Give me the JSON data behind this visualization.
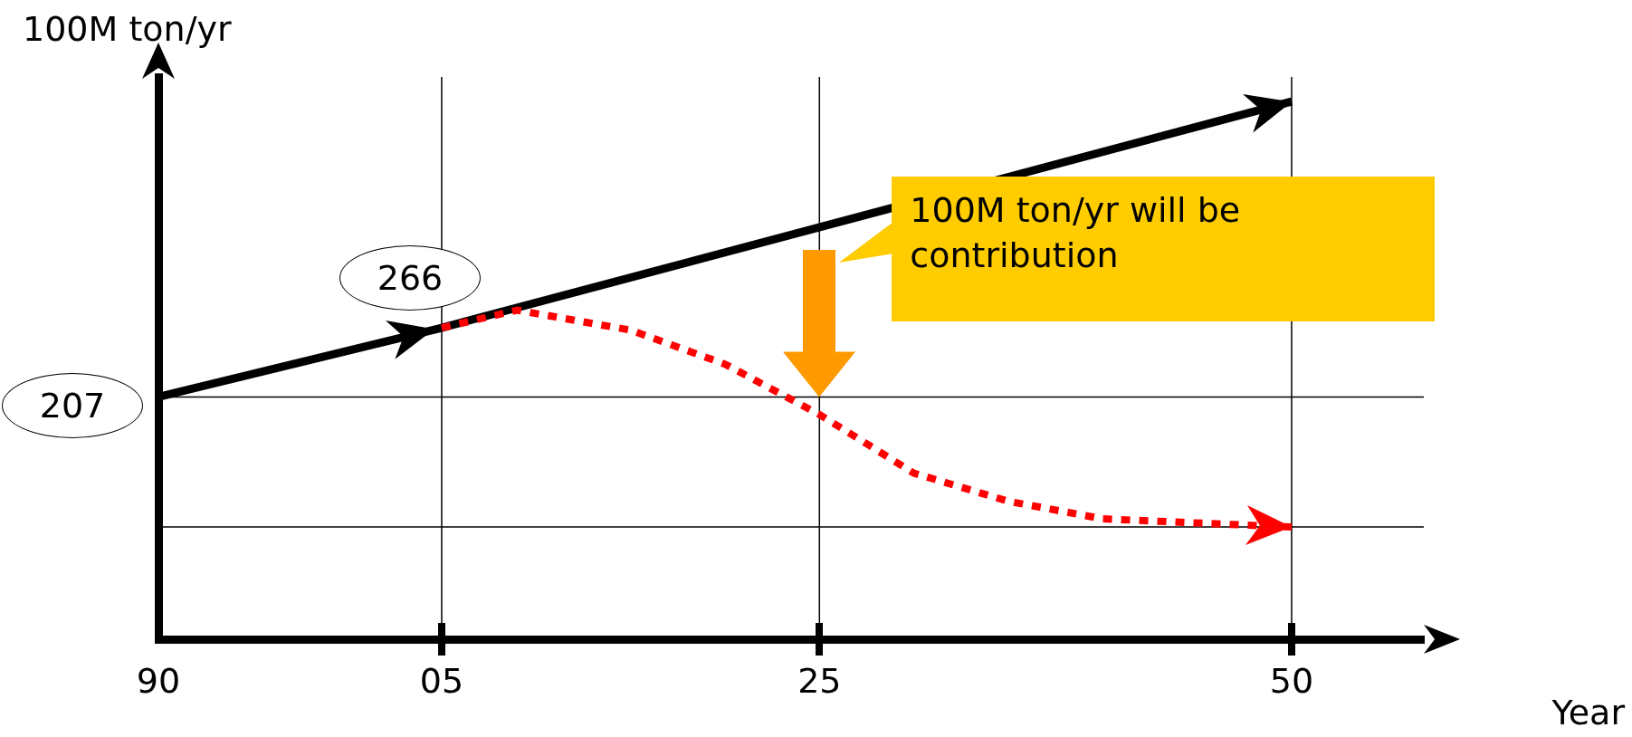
{
  "chart_data": {
    "type": "line",
    "ylabel": "100M ton/yr",
    "xlabel": "Year",
    "xlim": [
      1990,
      2057
    ],
    "xticks": [
      {
        "value": 1990,
        "label": "90"
      },
      {
        "value": 2005,
        "label": "05"
      },
      {
        "value": 2025,
        "label": "25"
      },
      {
        "value": 2050,
        "label": "50"
      }
    ],
    "ylim": [
      0,
      480
    ],
    "tick_labels": "x",
    "legend": false,
    "grid": false,
    "marker": "none",
    "series": [
      {
        "color": "#000000",
        "x": [
          1990,
          2005,
          2050
        ],
        "values": [
          207,
          266,
          459
        ],
        "value_labels": [
          "207",
          "266",
          null
        ]
      },
      {
        "color": "#ff0000",
        "line_style": "dotted",
        "x": [
          2005,
          2009,
          2015,
          2020,
          2025,
          2030,
          2035,
          2040,
          2050
        ],
        "values": [
          266,
          281,
          264,
          235,
          192,
          142,
          118,
          103,
          96
        ]
      }
    ],
    "ref_lines": [
      {
        "axis": "y",
        "value": 207
      },
      {
        "axis": "y",
        "value": 96
      },
      {
        "axis": "x",
        "value": 2005
      },
      {
        "axis": "x",
        "value": 2025
      },
      {
        "axis": "x",
        "value": 2050
      }
    ],
    "annotations": [
      "100M ton/yr will be contribution"
    ]
  }
}
